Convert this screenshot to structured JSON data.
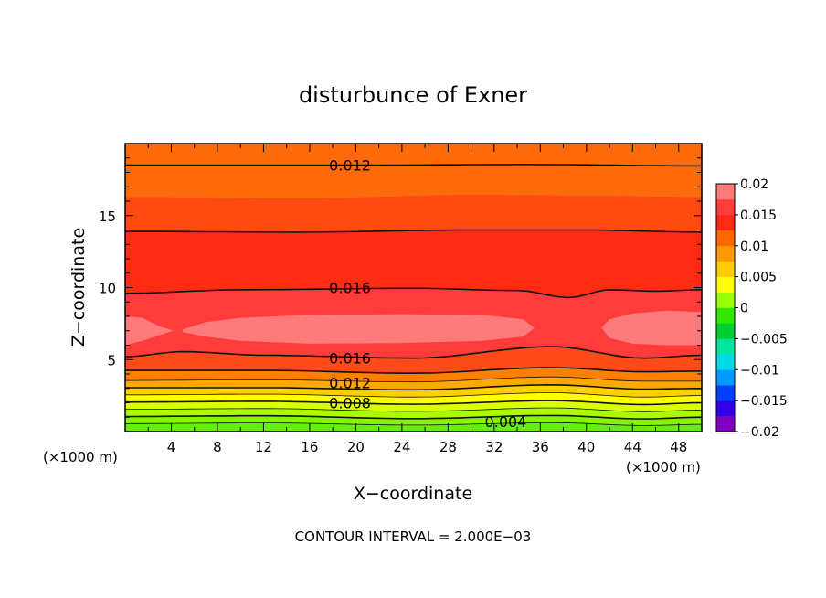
{
  "chart_data": {
    "type": "heatmap",
    "title": "disturbunce of Exner",
    "xlabel": "X−coordinate",
    "ylabel": "Z−coordinate",
    "x_unit": "(×1000 m)",
    "y_unit": "(×1000 m)",
    "xlim": [
      0,
      50
    ],
    "ylim": [
      0,
      20
    ],
    "x_ticks": [
      4,
      8,
      12,
      16,
      20,
      24,
      28,
      32,
      36,
      40,
      44,
      48
    ],
    "y_ticks": [
      5,
      10,
      15
    ],
    "footer": "CONTOUR INTERVAL = 2.000E−03",
    "colorbar": {
      "min": -0.02,
      "max": 0.02,
      "labels": [
        "0.02",
        "0.015",
        "0.01",
        "0.005",
        "0",
        "−0.005",
        "−0.01",
        "−0.015",
        "−0.02"
      ],
      "colors": [
        "#7f00bf",
        "#3200e6",
        "#0040ff",
        "#0099ff",
        "#00d9e6",
        "#00e6a0",
        "#00cc33",
        "#33e600",
        "#99ff00",
        "#ffff00",
        "#ffcc00",
        "#ff9900",
        "#ff6600",
        "#ff2a16",
        "#ff3d3d",
        "#ff7a7a"
      ]
    },
    "contour_labels": [
      {
        "text": "0.012",
        "x": 19.5,
        "z": 18.5
      },
      {
        "text": "0.016",
        "x": 19.5,
        "z": 10.0
      },
      {
        "text": "0.016",
        "x": 19.5,
        "z": 5.1
      },
      {
        "text": "0.012",
        "x": 19.5,
        "z": 3.4
      },
      {
        "text": "0.008",
        "x": 19.5,
        "z": 2.0
      },
      {
        "text": "0.004",
        "x": 33.0,
        "z": 0.7
      }
    ]
  }
}
